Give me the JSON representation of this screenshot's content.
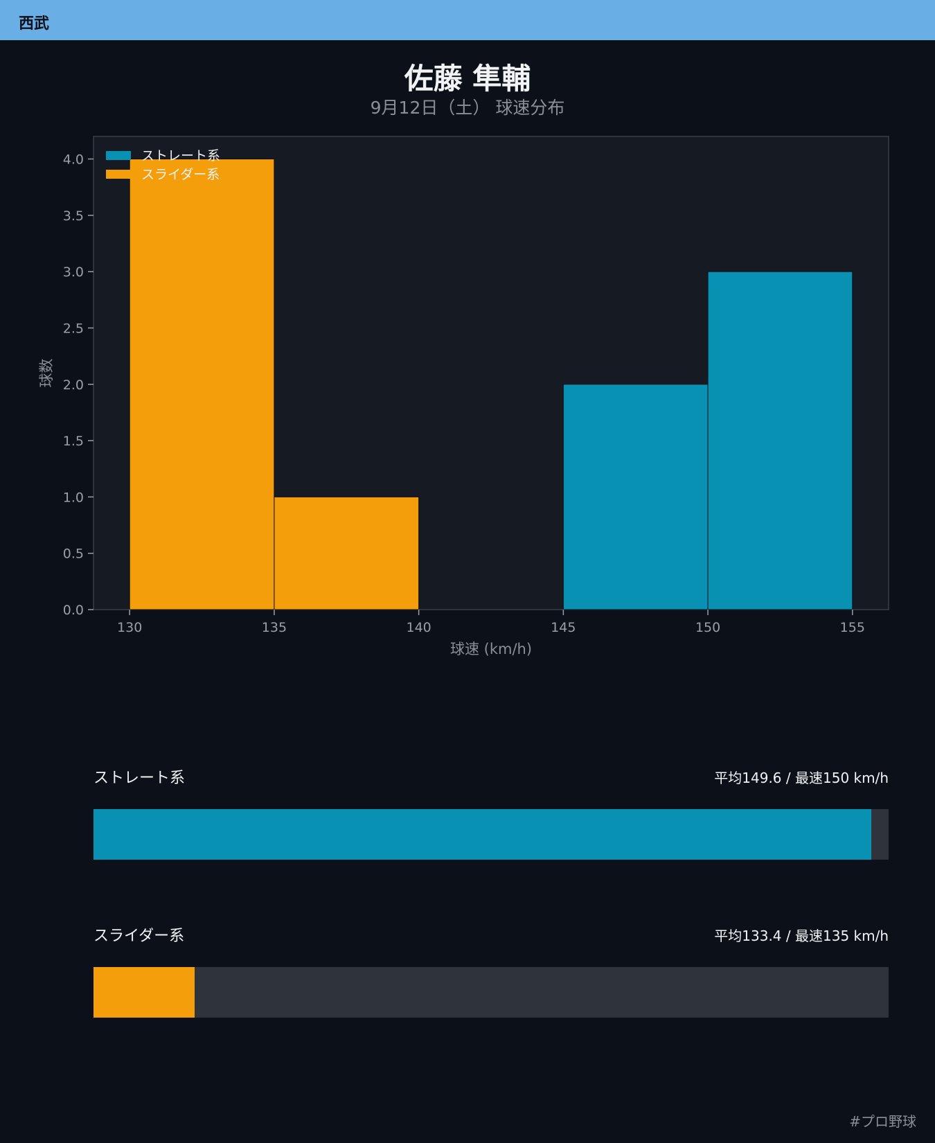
{
  "header": {
    "team": "西武"
  },
  "title": "佐藤 隼輔",
  "subtitle": "9月12日（土） 球速分布",
  "chart_data": {
    "type": "bar",
    "xlabel": "球速 (km/h)",
    "ylabel": "球数",
    "xlim": [
      128.75,
      156.25
    ],
    "ylim": [
      0,
      4.2
    ],
    "xticks": [
      "130",
      "135",
      "140",
      "145",
      "150",
      "155"
    ],
    "yticks": [
      "0.0",
      "0.5",
      "1.0",
      "1.5",
      "2.0",
      "2.5",
      "3.0",
      "3.5",
      "4.0"
    ],
    "legend_position": "top-left",
    "series": [
      {
        "name": "ストレート系",
        "color": "#0891b2",
        "bins": [
          {
            "x0": 145,
            "x1": 150,
            "count": 2
          },
          {
            "x0": 150,
            "x1": 155,
            "count": 3
          }
        ]
      },
      {
        "name": "スライダー系",
        "color": "#f59e0b",
        "bins": [
          {
            "x0": 130,
            "x1": 135,
            "count": 4
          },
          {
            "x0": 135,
            "x1": 140,
            "count": 1
          }
        ]
      }
    ]
  },
  "stats": [
    {
      "name": "ストレート系",
      "value_text": "平均149.6 / 最速150 km/h",
      "fill_fraction": 0.978,
      "color": "#0891b2"
    },
    {
      "name": "スライダー系",
      "value_text": "平均133.4 / 最速135 km/h",
      "fill_fraction": 0.127,
      "color": "#f59e0b"
    }
  ],
  "footer": {
    "hashtag": "#プロ野球"
  }
}
